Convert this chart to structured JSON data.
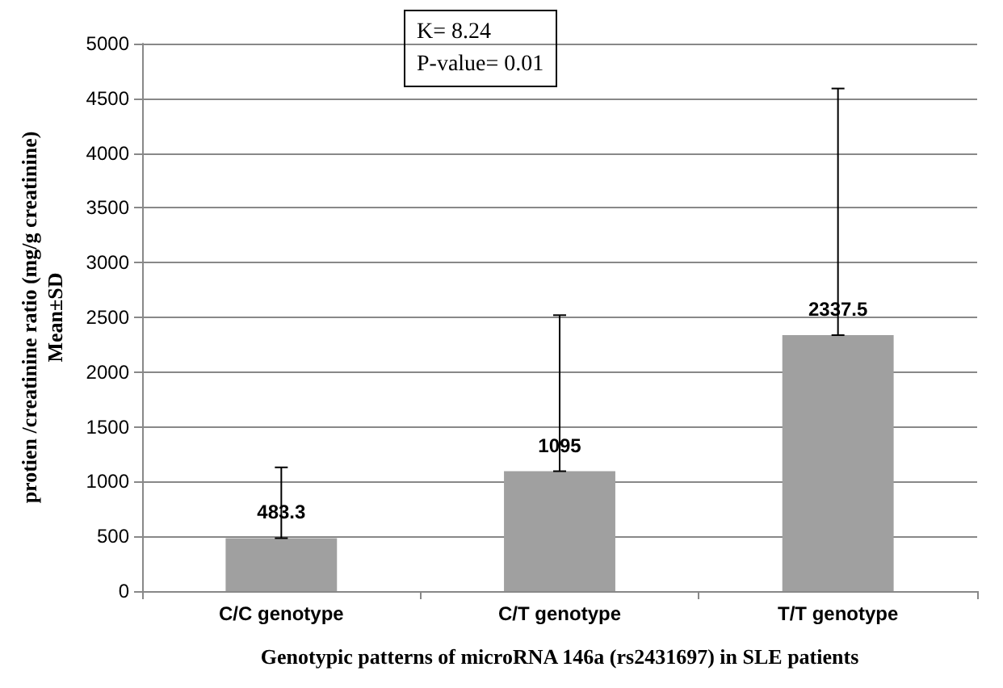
{
  "chart_data": {
    "type": "bar",
    "xlabel": "Genotypic patterns of microRNA 146a (rs2431697) in SLE patients",
    "ylabel": "protien /creatinine ratio (mg/g creatinine)\nMean±SD",
    "annotations": [
      "K= 8.24\nP-value= 0.01"
    ],
    "categories": [
      "C/C genotype",
      "C/T genotype",
      "T/T genotype"
    ],
    "values": [
      483.3,
      1095,
      2337.5
    ],
    "color": "#a0a0a0",
    "errors": [
      [
        483.3,
        1130
      ],
      [
        1095,
        2520
      ],
      [
        2337.5,
        4590
      ]
    ],
    "data_labels": true,
    "ylim": [
      0,
      5000
    ],
    "yticks": [
      0,
      500,
      1000,
      1500,
      2000,
      2500,
      3000,
      3500,
      4000,
      4500,
      5000
    ],
    "grid": "y"
  }
}
